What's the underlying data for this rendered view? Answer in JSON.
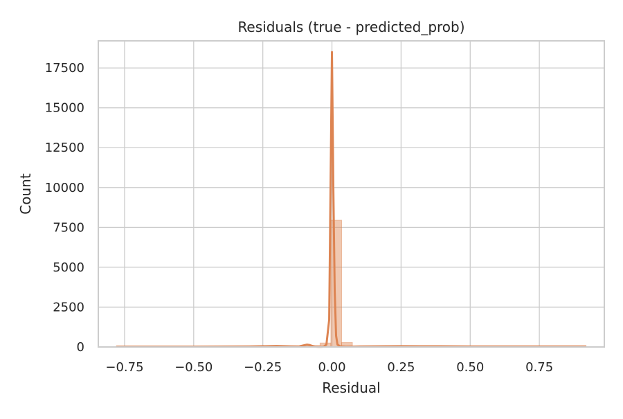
{
  "chart_data": {
    "type": "bar",
    "title": "Residuals (true - predicted_prob)",
    "xlabel": "Residual",
    "ylabel": "Count",
    "xlim": [
      -0.845,
      0.985
    ],
    "ylim": [
      0,
      19200
    ],
    "x_ticks": [
      -0.75,
      -0.5,
      -0.25,
      0.0,
      0.25,
      0.5,
      0.75
    ],
    "x_tick_labels": [
      "−0.75",
      "−0.50",
      "−0.25",
      "0.00",
      "0.25",
      "0.50",
      "0.75"
    ],
    "y_ticks": [
      0,
      2500,
      5000,
      7500,
      10000,
      12500,
      15000,
      17500
    ],
    "y_tick_labels": [
      "0",
      "2500",
      "5000",
      "7500",
      "10000",
      "12500",
      "15000",
      "17500"
    ],
    "grid": true,
    "bar_color": "#dd8452",
    "kde_color": "#dd8452",
    "histogram": {
      "bin_edges": [
        -0.784,
        -0.745,
        -0.706,
        -0.667,
        -0.628,
        -0.589,
        -0.55,
        -0.511,
        -0.472,
        -0.433,
        -0.394,
        -0.355,
        -0.316,
        -0.277,
        -0.238,
        -0.199,
        -0.16,
        -0.121,
        -0.082,
        -0.043,
        -0.004,
        0.035,
        0.074,
        0.113,
        0.152,
        0.191,
        0.23,
        0.269,
        0.308,
        0.347,
        0.386,
        0.425,
        0.464,
        0.503,
        0.542,
        0.581,
        0.62,
        0.659,
        0.698,
        0.737,
        0.776,
        0.815,
        0.854,
        0.893,
        0.932
      ],
      "counts": [
        30,
        20,
        15,
        15,
        15,
        15,
        15,
        15,
        15,
        15,
        15,
        15,
        15,
        20,
        25,
        40,
        30,
        60,
        90,
        250,
        7950,
        280,
        40,
        25,
        20,
        25,
        30,
        30,
        40,
        30,
        25,
        30,
        25,
        20,
        20,
        20,
        15,
        15,
        15,
        20,
        20,
        25,
        30,
        25
      ]
    },
    "kde": {
      "x": [
        -0.78,
        -0.5,
        -0.3,
        -0.2,
        -0.15,
        -0.12,
        -0.1,
        -0.09,
        -0.08,
        -0.07,
        -0.06,
        -0.05,
        -0.04,
        -0.03,
        -0.02,
        -0.01,
        0.0,
        0.005,
        0.01,
        0.015,
        0.02,
        0.03,
        0.05,
        0.1,
        0.25,
        0.32,
        0.5,
        0.75,
        0.92
      ],
      "y": [
        20,
        20,
        30,
        60,
        40,
        30,
        110,
        150,
        120,
        60,
        20,
        10,
        10,
        20,
        150,
        1700,
        18500,
        10000,
        3500,
        700,
        150,
        40,
        20,
        30,
        50,
        45,
        35,
        35,
        30
      ]
    }
  }
}
